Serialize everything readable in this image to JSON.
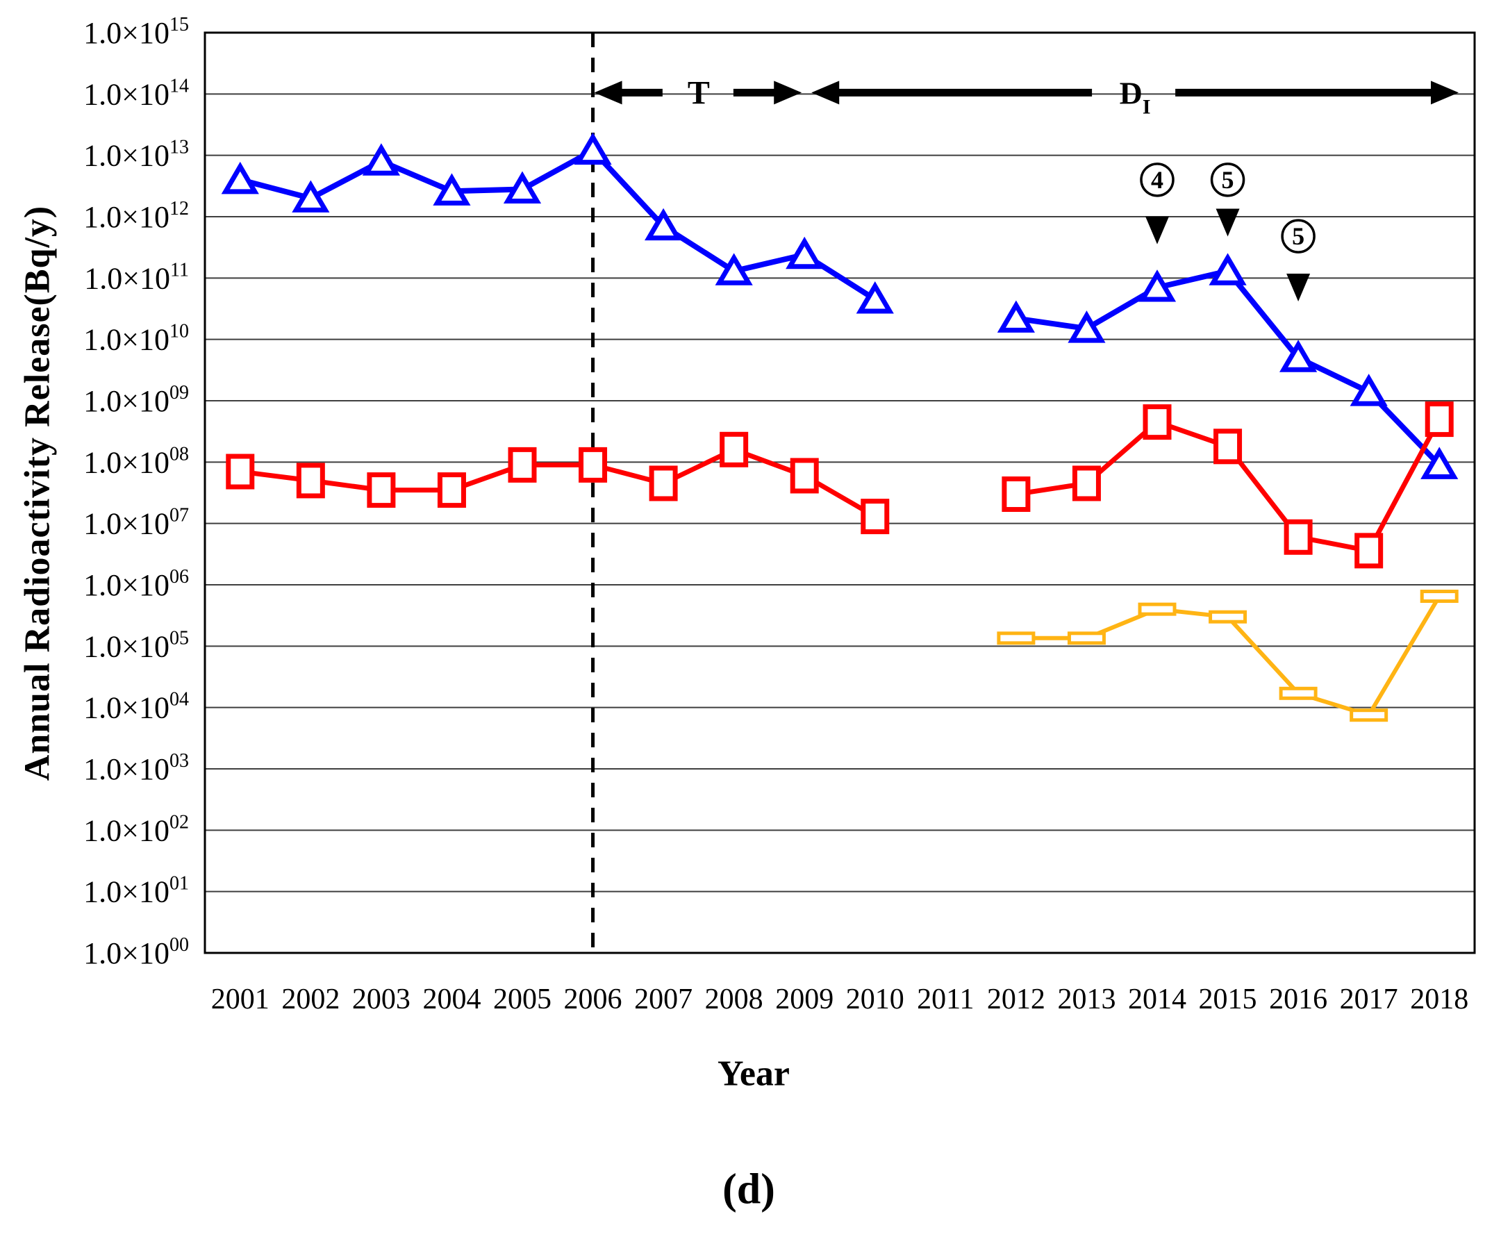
{
  "chart_data": {
    "type": "line",
    "title": "",
    "ylabel": "Annual Radioactivity Release(Bq/y)",
    "xlabel": "Year",
    "figure_label": "(d)",
    "x_categories": [
      "2001",
      "2002",
      "2003",
      "2004",
      "2005",
      "2006",
      "2007",
      "2008",
      "2009",
      "2010",
      "2011",
      "2012",
      "2013",
      "2014",
      "2015",
      "2016",
      "2017",
      "2018"
    ],
    "y_axis": {
      "scale": "log10",
      "ylim": [
        1,
        1000000000000000.0
      ],
      "tick_prefix": "1.0×10",
      "tick_exponents": [
        "15",
        "14",
        "13",
        "12",
        "11",
        "10",
        "09",
        "08",
        "07",
        "06",
        "05",
        "04",
        "03",
        "02",
        "01",
        "00"
      ],
      "grid": true
    },
    "series": [
      {
        "name": "blue-triangle-series",
        "marker": "triangle-up-open",
        "color": "#0000FF",
        "values": [
          4000000000000.0,
          2000000000000.0,
          8000000000000.0,
          2600000000000.0,
          2800000000000.0,
          12000000000000.0,
          700000000000.0,
          130000000000.0,
          240000000000.0,
          45000000000.0,
          null,
          22000000000.0,
          15000000000.0,
          70000000000.0,
          130000000000.0,
          5000000000.0,
          1400000000.0,
          90000000.0
        ]
      },
      {
        "name": "red-square-series",
        "marker": "square-open",
        "color": "#FF0000",
        "values": [
          70000000.0,
          50000000.0,
          35000000.0,
          35000000.0,
          90000000.0,
          90000000.0,
          45000000.0,
          160000000.0,
          60000000.0,
          13000000.0,
          null,
          30000000.0,
          45000000.0,
          450000000.0,
          180000000.0,
          6000000.0,
          3600000.0,
          500000000.0
        ]
      },
      {
        "name": "orange-bar-series",
        "marker": "flat-bar-open",
        "color": "#FFB414",
        "values": [
          null,
          null,
          null,
          null,
          null,
          null,
          null,
          null,
          null,
          null,
          null,
          135000.0,
          135000.0,
          400000.0,
          300000.0,
          17000.0,
          7500.0,
          650000.0
        ]
      }
    ],
    "divider": {
      "year": "2006",
      "style": "dashed",
      "color": "#000000"
    },
    "phase_arrows": [
      {
        "label": "T",
        "start_year": "2006",
        "end_year": "2009",
        "at_value": 100000000000000.0
      },
      {
        "label": "D",
        "sub_label": "I",
        "start_year": "2009",
        "end_year": "plot-right-edge",
        "at_value": 100000000000000.0
      }
    ],
    "annotations": [
      {
        "digit": "4",
        "year": "2014",
        "badge_value": 4000000000000.0,
        "pointer_value": 600000000000.0
      },
      {
        "digit": "5",
        "year": "2015",
        "badge_value": 4000000000000.0,
        "pointer_value": 800000000000.0
      },
      {
        "digit": "5",
        "year": "2016",
        "badge_value": 480000000000.0,
        "pointer_value": 70000000000.0
      }
    ],
    "colors": {
      "grid": "#3f3f3f",
      "border": "#000000",
      "annotation": "#000000"
    }
  }
}
